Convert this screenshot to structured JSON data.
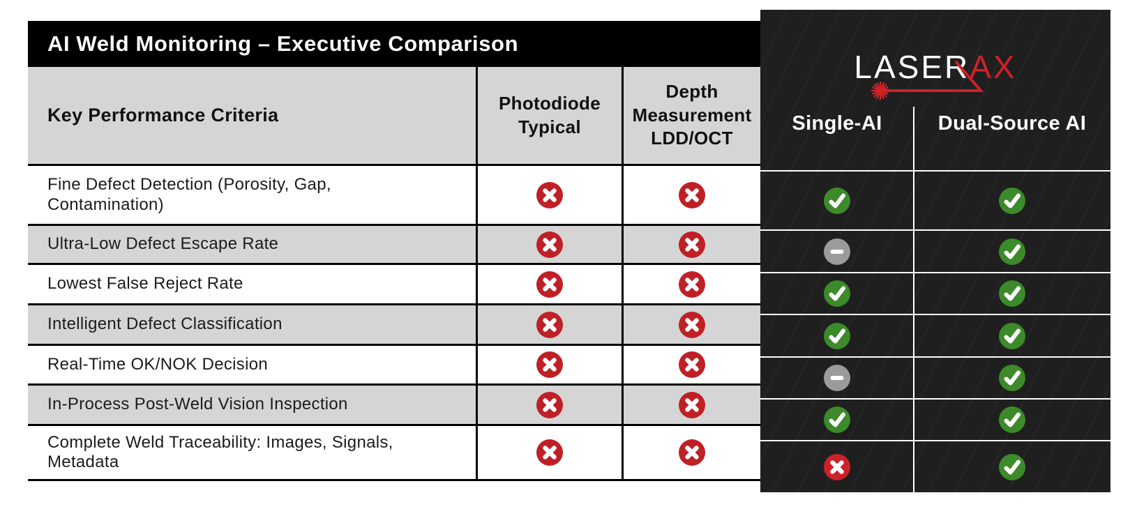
{
  "title": "AI Weld Monitoring – Executive Comparison",
  "brand": {
    "logo_white": "LASER",
    "logo_red": "AX"
  },
  "columns": {
    "criteria": "Key Performance Criteria",
    "photodiode": "Photodiode Typical",
    "depth": "Depth Measurement LDD/OCT",
    "single_ai": "Single-AI",
    "dual_ai": "Dual-Source AI"
  },
  "legend": {
    "no": "cross-icon",
    "yes": "check-icon",
    "partial": "dash-icon"
  },
  "colors": {
    "cross_red": "#bf2026",
    "panel_cross_red": "#cd2128",
    "check_green": "#3c8a2a",
    "dash_gray": "#9b9b9b",
    "brand_red": "#cf2127",
    "row_gray": "#d5d5d6",
    "panel_bg": "#1f1f1f"
  },
  "rows": [
    {
      "label": "Fine Defect Detection (Porosity, Gap, Contamination)",
      "photodiode": "no",
      "depth": "no",
      "single_ai": "yes",
      "dual_ai": "yes"
    },
    {
      "label": "Ultra-Low Defect Escape Rate",
      "photodiode": "no",
      "depth": "no",
      "single_ai": "partial",
      "dual_ai": "yes"
    },
    {
      "label": "Lowest False Reject Rate",
      "photodiode": "no",
      "depth": "no",
      "single_ai": "yes",
      "dual_ai": "yes"
    },
    {
      "label": "Intelligent Defect Classification",
      "photodiode": "no",
      "depth": "no",
      "single_ai": "yes",
      "dual_ai": "yes"
    },
    {
      "label": "Real-Time OK/NOK Decision",
      "photodiode": "no",
      "depth": "no",
      "single_ai": "partial",
      "dual_ai": "yes"
    },
    {
      "label": "In-Process Post-Weld Vision Inspection",
      "photodiode": "no",
      "depth": "no",
      "single_ai": "yes",
      "dual_ai": "yes"
    },
    {
      "label": "Complete Weld Traceability: Images, Signals, Metadata",
      "photodiode": "no",
      "depth": "no",
      "single_ai": "no",
      "dual_ai": "yes"
    }
  ]
}
